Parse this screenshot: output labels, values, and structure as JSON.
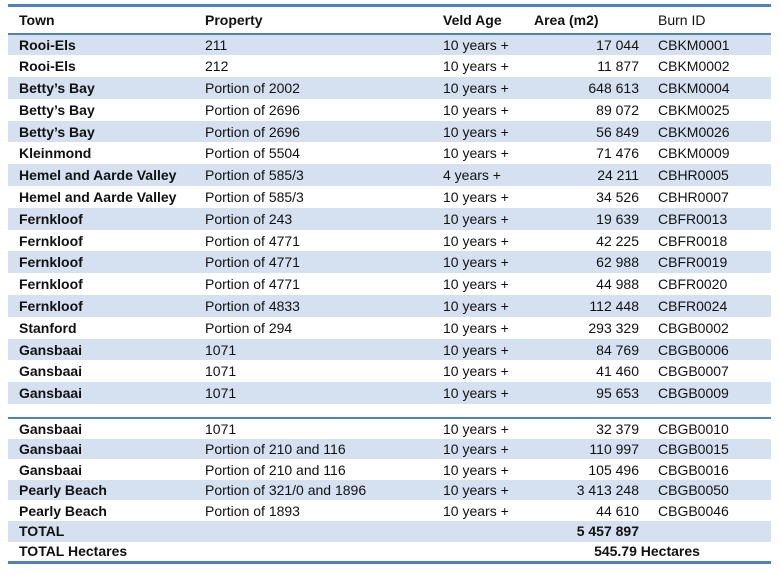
{
  "table": {
    "header": [
      "Town",
      "Property",
      "Veld Age",
      "Area (m2)",
      "Burn ID"
    ],
    "columns_note": "Burn ID header is regular weight; other headers bold",
    "colors": {
      "accent_border": "#4F81BD",
      "row_shading": "#D5E1F0",
      "text": "#111111",
      "background": "#FFFFFF"
    },
    "sections": [
      {
        "first_row_shaded": true,
        "rows": [
          [
            "Rooi-Els",
            "211",
            "10 years +",
            "17 044",
            "CBKM0001"
          ],
          [
            "Rooi-Els",
            "212",
            "10 years +",
            "11 877",
            "CBKM0002"
          ],
          [
            "Betty’s Bay",
            "Portion of 2002",
            "10 years +",
            "648 613",
            "CBKM0004"
          ],
          [
            "Betty’s Bay",
            "Portion of 2696",
            "10 years +",
            "89 072",
            "CBKM0025"
          ],
          [
            "Betty’s Bay",
            "Portion of 2696",
            "10 years +",
            "56 849",
            "CBKM0026"
          ],
          [
            "Kleinmond",
            "Portion of 5504",
            "10 years +",
            "71 476",
            "CBKM0009"
          ],
          [
            "Hemel and Aarde Valley",
            "Portion of 585/3",
            "4 years +",
            "24 211",
            "CBHR0005"
          ],
          [
            "Hemel and Aarde Valley",
            "Portion of 585/3",
            "10 years +",
            "34 526",
            "CBHR0007"
          ],
          [
            "Fernkloof",
            "Portion of 243",
            "10 years +",
            "19 639",
            "CBFR0013"
          ],
          [
            "Fernkloof",
            "Portion of 4771",
            "10 years +",
            "42 225",
            "CBFR0018"
          ],
          [
            "Fernkloof",
            "Portion of 4771",
            "10 years +",
            "62 988",
            "CBFR0019"
          ],
          [
            "Fernkloof",
            "Portion of 4771",
            "10 years +",
            "44 988",
            "CBFR0020"
          ],
          [
            "Fernkloof",
            "Portion of 4833",
            "10 years +",
            "112 448",
            "CBFR0024"
          ],
          [
            "Stanford",
            "Portion of 294",
            "10 years +",
            "293 329",
            "CBGB0002"
          ],
          [
            "Gansbaai",
            "1071",
            "10 years +",
            "84 769",
            "CBGB0006"
          ],
          [
            "Gansbaai",
            "1071",
            "10 years +",
            "41 460",
            "CBGB0007"
          ],
          [
            "Gansbaai",
            "1071",
            "10 years +",
            "95 653",
            "CBGB0009"
          ]
        ]
      },
      {
        "first_row_shaded": false,
        "rows": [
          [
            "Gansbaai",
            "1071",
            "10 years +",
            "32 379",
            "CBGB0010"
          ],
          [
            "Gansbaai",
            "Portion of 210 and 116",
            "10 years +",
            "110 997",
            "CBGB0015"
          ],
          [
            "Gansbaai",
            "Portion of 210 and 116",
            "10 years +",
            "105 496",
            "CBGB0016"
          ],
          [
            "Pearly Beach",
            "Portion of 321/0 and 1896",
            "10 years +",
            "3 413 248",
            "CBGB0050"
          ],
          [
            "Pearly Beach",
            "Portion of 1893",
            "10 years +",
            "44 610",
            "CBGB0046"
          ]
        ]
      }
    ],
    "totals": {
      "area_label": "TOTAL",
      "area_value": "5 457 897",
      "hectares_label": "TOTAL Hectares",
      "hectares_value": "545.79 Hectares"
    }
  }
}
